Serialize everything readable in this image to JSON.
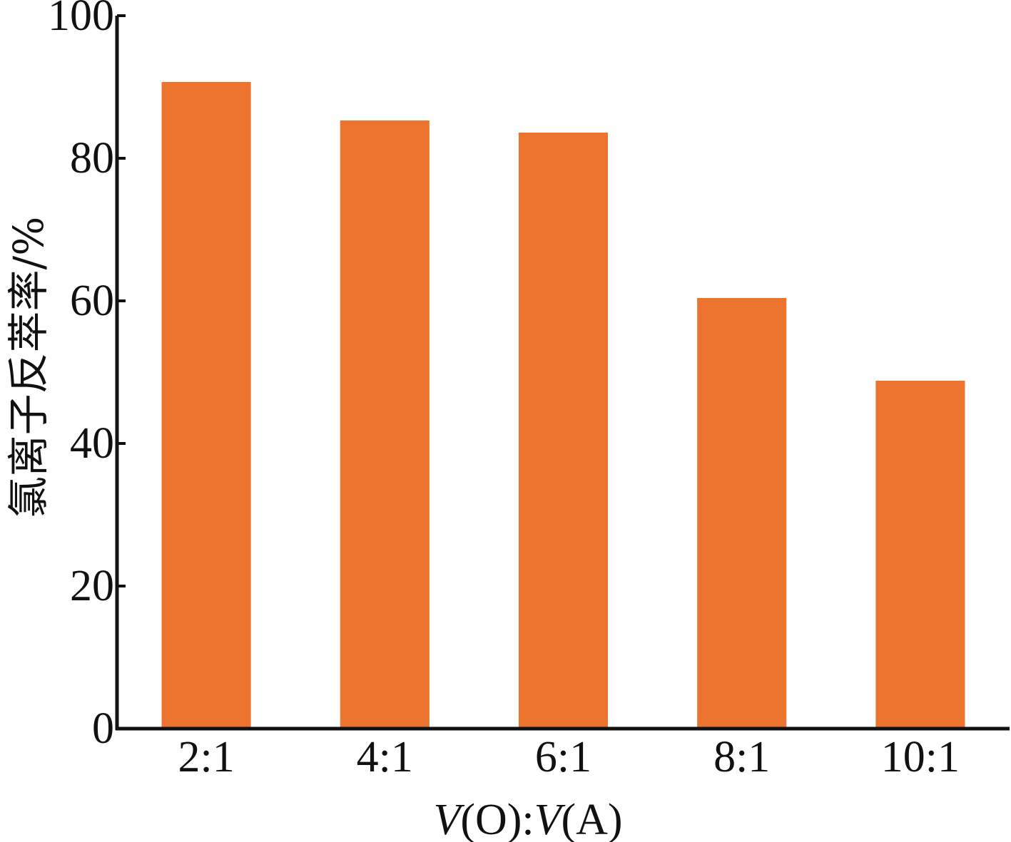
{
  "chart_data": {
    "type": "bar",
    "categories": [
      "2:1",
      "4:1",
      "6:1",
      "8:1",
      "10:1"
    ],
    "values": [
      90.7,
      85.3,
      83.6,
      60.4,
      48.8
    ],
    "xlabel": {
      "v1": "V",
      "o_part": "(O):",
      "v2": "V",
      "a_part": "(A)"
    },
    "ylabel": "氯离子反萃率/%",
    "ylim": [
      0,
      100
    ],
    "yticks": [
      0,
      20,
      40,
      60,
      80,
      100
    ],
    "ytick_labels": [
      "0",
      "20",
      "40",
      "60",
      "80",
      "100"
    ],
    "grid": false,
    "bar_color": "#ED742E",
    "axis_color": "#111111"
  }
}
